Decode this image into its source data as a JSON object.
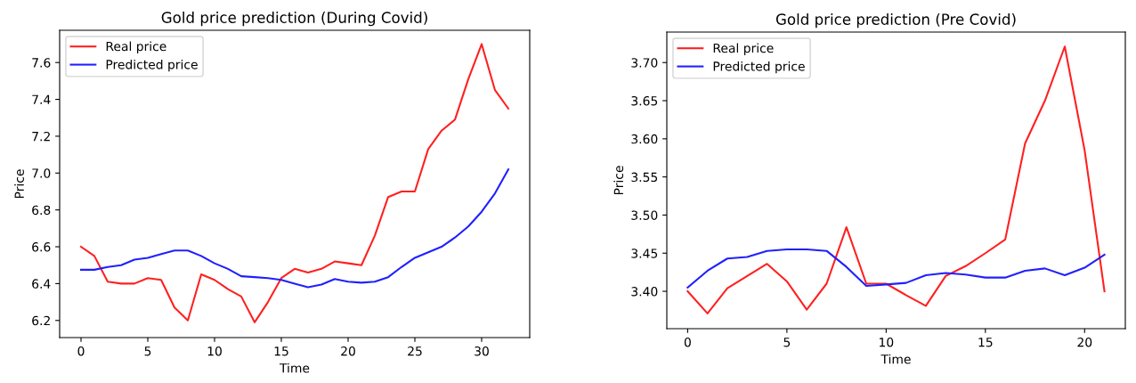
{
  "chart_data": [
    {
      "type": "line",
      "title": "Gold price prediction (During Covid)",
      "xlabel": "Time",
      "ylabel": "Price",
      "x": [
        0,
        1,
        2,
        3,
        4,
        5,
        6,
        7,
        8,
        9,
        10,
        11,
        12,
        13,
        14,
        15,
        16,
        17,
        18,
        19,
        20,
        21,
        22,
        23,
        24,
        25,
        26,
        27,
        28,
        29,
        30,
        31,
        32
      ],
      "series": [
        {
          "name": "Real price",
          "color": "#ff2020",
          "values": [
            6.6,
            6.55,
            6.41,
            6.4,
            6.4,
            6.43,
            6.42,
            6.27,
            6.2,
            6.45,
            6.42,
            6.37,
            6.33,
            6.19,
            6.3,
            6.43,
            6.48,
            6.46,
            6.48,
            6.52,
            6.51,
            6.5,
            6.66,
            6.87,
            6.9,
            6.9,
            7.13,
            7.23,
            7.29,
            7.51,
            7.7,
            7.45,
            7.35
          ]
        },
        {
          "name": "Predicted price",
          "color": "#2020ff",
          "values": [
            6.475,
            6.475,
            6.49,
            6.5,
            6.53,
            6.54,
            6.56,
            6.58,
            6.58,
            6.55,
            6.51,
            6.48,
            6.44,
            6.435,
            6.43,
            6.42,
            6.4,
            6.38,
            6.395,
            6.425,
            6.41,
            6.405,
            6.41,
            6.435,
            6.49,
            6.54,
            6.57,
            6.6,
            6.65,
            6.71,
            6.79,
            6.89,
            7.02
          ]
        }
      ],
      "xlim": [
        -1.6,
        33.6
      ],
      "ylim": [
        6.107,
        7.775
      ],
      "xticks": [
        0,
        5,
        10,
        15,
        20,
        25,
        30
      ],
      "yticks": [
        {
          "value": 6.2,
          "label": "6.2"
        },
        {
          "value": 6.4,
          "label": "6.4"
        },
        {
          "value": 6.6,
          "label": "6.6"
        },
        {
          "value": 6.8,
          "label": "6.8"
        },
        {
          "value": 7.0,
          "label": "7.0"
        },
        {
          "value": 7.2,
          "label": "7.2"
        },
        {
          "value": 7.4,
          "label": "7.4"
        },
        {
          "value": 7.6,
          "label": "7.6"
        }
      ],
      "legend": "top left",
      "grid": false,
      "marker": "none",
      "line_style": "solid"
    },
    {
      "type": "line",
      "title": "Gold price prediction (Pre Covid)",
      "xlabel": "Time",
      "ylabel": "Price",
      "x": [
        0,
        1,
        2,
        3,
        4,
        5,
        6,
        7,
        8,
        9,
        10,
        11,
        12,
        13,
        14,
        15,
        16,
        17,
        18,
        19,
        20,
        21
      ],
      "series": [
        {
          "name": "Real price",
          "color": "#ff2020",
          "values": [
            3.4,
            3.371,
            3.404,
            3.42,
            3.436,
            3.413,
            3.376,
            3.41,
            3.484,
            3.41,
            3.41,
            3.395,
            3.381,
            3.42,
            3.433,
            3.45,
            3.468,
            3.594,
            3.65,
            3.721,
            3.585,
            3.4
          ]
        },
        {
          "name": "Predicted price",
          "color": "#2020ff",
          "values": [
            3.405,
            3.427,
            3.443,
            3.445,
            3.453,
            3.455,
            3.455,
            3.453,
            3.432,
            3.407,
            3.409,
            3.411,
            3.421,
            3.424,
            3.422,
            3.418,
            3.418,
            3.427,
            3.43,
            3.421,
            3.431,
            3.448
          ]
        }
      ],
      "xlim": [
        -1.05,
        22.05
      ],
      "ylim": [
        3.351,
        3.74
      ],
      "xticks": [
        0,
        5,
        10,
        15,
        20
      ],
      "yticks": [
        {
          "value": 3.4,
          "label": "3.40"
        },
        {
          "value": 3.45,
          "label": "3.45"
        },
        {
          "value": 3.5,
          "label": "3.50"
        },
        {
          "value": 3.55,
          "label": "3.55"
        },
        {
          "value": 3.6,
          "label": "3.60"
        },
        {
          "value": 3.65,
          "label": "3.65"
        },
        {
          "value": 3.7,
          "label": "3.70"
        }
      ],
      "legend": "top left",
      "grid": false,
      "marker": "none",
      "line_style": "solid"
    }
  ]
}
